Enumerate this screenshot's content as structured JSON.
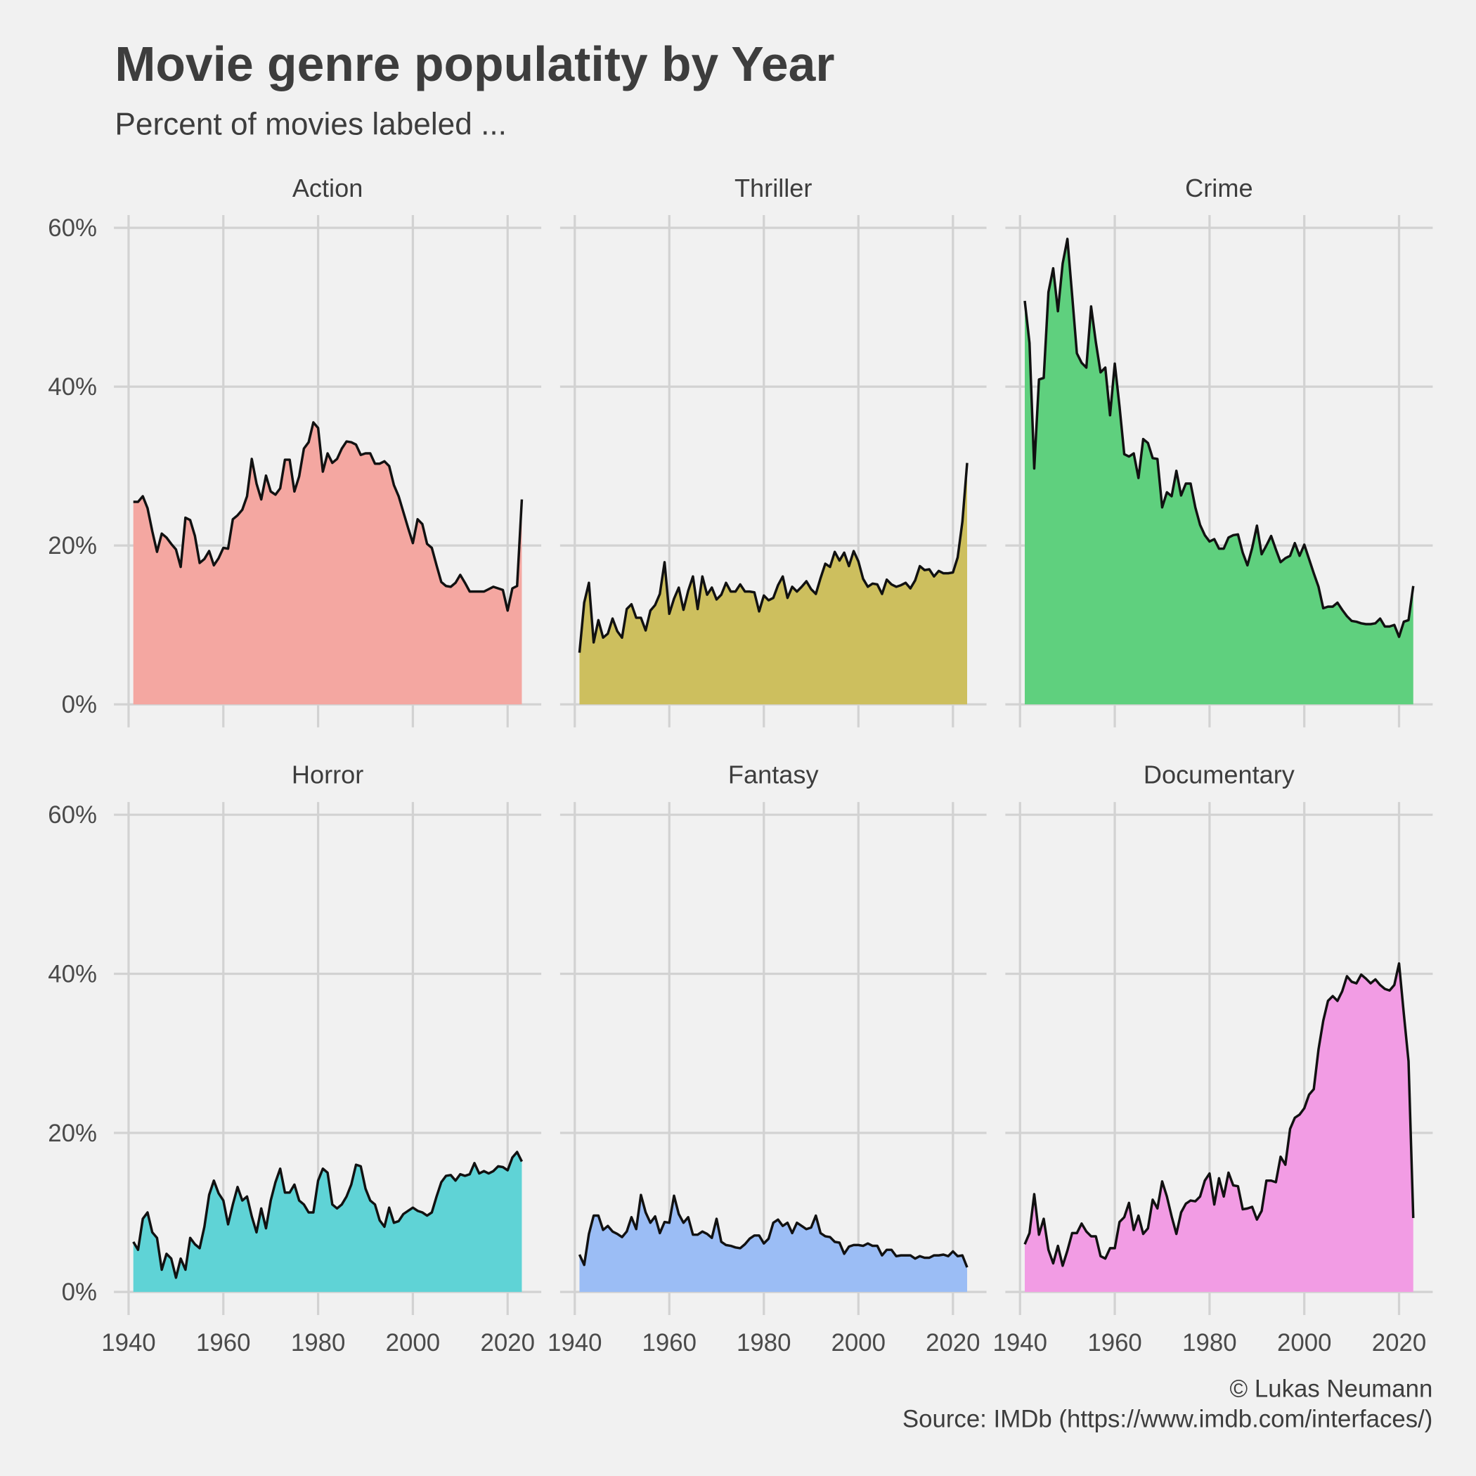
{
  "chart_data": {
    "type": "area",
    "title": "Movie genre populatity by Year",
    "subtitle": "Percent of movies labeled ...",
    "caption": [
      "© Lukas Neumann",
      "Source: IMDb (https://www.imdb.com/interfaces/)"
    ],
    "x": [
      1941,
      1942,
      1943,
      1944,
      1945,
      1946,
      1947,
      1948,
      1949,
      1950,
      1951,
      1952,
      1953,
      1954,
      1955,
      1956,
      1957,
      1958,
      1959,
      1960,
      1961,
      1962,
      1963,
      1964,
      1965,
      1966,
      1967,
      1968,
      1969,
      1970,
      1971,
      1972,
      1973,
      1974,
      1975,
      1976,
      1977,
      1978,
      1979,
      1980,
      1981,
      1982,
      1983,
      1984,
      1985,
      1986,
      1987,
      1988,
      1989,
      1990,
      1991,
      1992,
      1993,
      1994,
      1995,
      1996,
      1997,
      1998,
      1999,
      2000,
      2001,
      2002,
      2003,
      2004,
      2005,
      2006,
      2007,
      2008,
      2009,
      2010,
      2011,
      2012,
      2013,
      2014,
      2015,
      2016,
      2017,
      2018,
      2019,
      2020,
      2021,
      2022,
      2023
    ],
    "xlim": [
      1936.9,
      2027.1
    ],
    "xticks": [
      1940,
      1960,
      1980,
      2000,
      2020
    ],
    "ylim": [
      -2.9,
      61.6
    ],
    "yticks": [
      {
        "value": 0,
        "label": "0%"
      },
      {
        "value": 20,
        "label": "20%"
      },
      {
        "value": 40,
        "label": "40%"
      },
      {
        "value": 60,
        "label": "60%"
      }
    ],
    "grid": true,
    "line_color": "#111111",
    "series": [
      {
        "name": "Action",
        "color": "#f4a7a1",
        "values": [
          25.5,
          25.5,
          26.2,
          24.7,
          21.8,
          19.2,
          21.5,
          21.0,
          20.2,
          19.5,
          17.3,
          23.5,
          23.2,
          21.2,
          17.8,
          18.3,
          19.3,
          17.5,
          18.4,
          19.7,
          19.6,
          23.3,
          23.8,
          24.5,
          26.2,
          30.9,
          27.8,
          25.8,
          28.8,
          26.8,
          26.4,
          27.2,
          30.8,
          30.8,
          26.8,
          28.7,
          32.2,
          33.0,
          35.5,
          34.8,
          29.3,
          31.6,
          30.4,
          30.9,
          32.2,
          33.1,
          33.0,
          32.7,
          31.4,
          31.6,
          31.6,
          30.3,
          30.3,
          30.6,
          30.0,
          27.6,
          26.2,
          24.2,
          22.2,
          20.3,
          23.3,
          22.7,
          20.2,
          19.7,
          17.5,
          15.4,
          14.9,
          14.8,
          15.3,
          16.3,
          15.3,
          14.2,
          14.2,
          14.2,
          14.2,
          14.5,
          14.8,
          14.6,
          14.4,
          11.8,
          14.6,
          14.9,
          25.8
        ]
      },
      {
        "name": "Thriller",
        "color": "#cdbf5e",
        "values": [
          6.5,
          12.8,
          15.3,
          7.8,
          10.6,
          8.4,
          8.9,
          10.8,
          9.2,
          8.4,
          12.0,
          12.6,
          10.9,
          10.9,
          9.3,
          11.8,
          12.5,
          13.9,
          17.9,
          11.4,
          13.3,
          14.7,
          11.9,
          14.3,
          16.1,
          12.0,
          16.1,
          13.8,
          14.7,
          13.2,
          13.8,
          15.3,
          14.2,
          14.2,
          15.1,
          14.2,
          14.2,
          14.1,
          11.7,
          13.7,
          13.1,
          13.4,
          15.0,
          16.1,
          13.4,
          14.8,
          14.2,
          14.8,
          15.5,
          14.5,
          13.9,
          15.9,
          17.7,
          17.3,
          19.2,
          18.1,
          19.1,
          17.4,
          19.3,
          18.0,
          15.8,
          14.8,
          15.2,
          15.1,
          13.9,
          15.7,
          15.1,
          14.8,
          15.0,
          15.3,
          14.6,
          15.6,
          17.4,
          16.9,
          17.0,
          16.1,
          16.8,
          16.5,
          16.5,
          16.6,
          18.5,
          23.0,
          30.4
        ]
      },
      {
        "name": "Crime",
        "color": "#5fd07e",
        "values": [
          50.8,
          45.5,
          29.7,
          40.9,
          41.1,
          51.9,
          54.9,
          49.5,
          55.5,
          58.6,
          51.5,
          44.2,
          43.0,
          42.4,
          50.1,
          45.6,
          41.8,
          42.4,
          36.4,
          42.9,
          37.5,
          31.5,
          31.2,
          31.6,
          28.5,
          33.4,
          32.9,
          31.0,
          30.9,
          24.8,
          26.7,
          26.2,
          29.4,
          26.3,
          27.8,
          27.8,
          24.8,
          22.6,
          21.3,
          20.5,
          20.8,
          19.6,
          19.6,
          21.0,
          21.3,
          21.4,
          19.1,
          17.5,
          19.7,
          22.5,
          18.9,
          20.0,
          21.2,
          19.5,
          17.9,
          18.4,
          18.7,
          20.3,
          18.7,
          20.1,
          18.3,
          16.5,
          14.8,
          12.1,
          12.3,
          12.3,
          12.8,
          11.9,
          11.1,
          10.5,
          10.4,
          10.2,
          10.1,
          10.1,
          10.2,
          10.8,
          9.8,
          9.8,
          10.0,
          8.5,
          10.4,
          10.6,
          14.9
        ]
      },
      {
        "name": "Horror",
        "color": "#5fd3d6",
        "values": [
          6.3,
          5.3,
          9.2,
          10.0,
          7.5,
          6.8,
          2.8,
          4.8,
          4.2,
          1.8,
          4.2,
          2.8,
          6.8,
          6.0,
          5.5,
          8.2,
          12.2,
          14.0,
          12.4,
          11.5,
          8.5,
          11.0,
          13.2,
          11.5,
          12.0,
          9.5,
          7.5,
          10.5,
          8.0,
          11.5,
          13.8,
          15.5,
          12.5,
          12.5,
          13.5,
          11.5,
          11.0,
          10.0,
          10.0,
          14.0,
          15.5,
          15.0,
          11.0,
          10.5,
          11.0,
          12.0,
          13.5,
          16.0,
          15.8,
          13.0,
          11.5,
          11.0,
          9.0,
          8.2,
          10.6,
          8.7,
          8.9,
          9.8,
          10.2,
          10.6,
          10.2,
          10.0,
          9.6,
          10.0,
          12.0,
          13.8,
          14.6,
          14.7,
          14.0,
          14.8,
          14.6,
          14.8,
          16.2,
          14.9,
          15.2,
          14.9,
          15.2,
          15.8,
          15.7,
          15.3,
          16.9,
          17.6,
          16.4
        ]
      },
      {
        "name": "Fantasy",
        "color": "#9bbdf5",
        "values": [
          4.7,
          3.4,
          7.3,
          9.6,
          9.6,
          7.8,
          8.3,
          7.6,
          7.3,
          6.9,
          7.6,
          9.4,
          7.9,
          12.2,
          10.0,
          8.7,
          9.5,
          7.4,
          8.8,
          8.7,
          12.1,
          9.8,
          8.7,
          9.4,
          7.2,
          7.2,
          7.6,
          7.3,
          6.8,
          9.2,
          6.3,
          5.9,
          5.8,
          5.6,
          5.5,
          6.0,
          6.7,
          7.1,
          7.1,
          6.1,
          6.7,
          8.7,
          9.1,
          8.3,
          8.7,
          7.4,
          8.7,
          8.3,
          7.9,
          8.1,
          9.6,
          7.4,
          7.0,
          6.9,
          6.3,
          6.2,
          4.8,
          5.7,
          5.9,
          5.9,
          5.8,
          6.1,
          5.8,
          5.8,
          4.6,
          5.3,
          5.3,
          4.5,
          4.6,
          4.6,
          4.6,
          4.2,
          4.5,
          4.3,
          4.3,
          4.6,
          4.6,
          4.7,
          4.5,
          5.1,
          4.5,
          4.6,
          3.1
        ]
      },
      {
        "name": "Documentary",
        "color": "#f29ce4",
        "values": [
          6.0,
          7.4,
          12.3,
          7.2,
          9.2,
          5.3,
          3.6,
          5.8,
          3.3,
          5.2,
          7.4,
          7.4,
          8.6,
          7.6,
          7.0,
          7.0,
          4.5,
          4.2,
          5.5,
          5.5,
          8.8,
          9.4,
          11.2,
          7.8,
          9.6,
          7.3,
          8.0,
          11.6,
          10.5,
          13.9,
          12.0,
          9.5,
          7.3,
          10.0,
          11.1,
          11.5,
          11.4,
          12.0,
          14.0,
          14.9,
          11.0,
          14.3,
          12.0,
          15.0,
          13.4,
          13.3,
          10.4,
          10.5,
          10.7,
          9.1,
          10.2,
          14.0,
          14.0,
          13.8,
          17.0,
          16.0,
          20.5,
          21.9,
          22.3,
          23.1,
          24.8,
          25.5,
          30.5,
          34.1,
          36.6,
          37.2,
          36.6,
          37.8,
          39.7,
          39.0,
          38.8,
          39.9,
          39.4,
          38.8,
          39.3,
          38.6,
          38.1,
          37.9,
          38.6,
          41.3,
          35.0,
          29.0,
          9.3
        ]
      }
    ]
  }
}
